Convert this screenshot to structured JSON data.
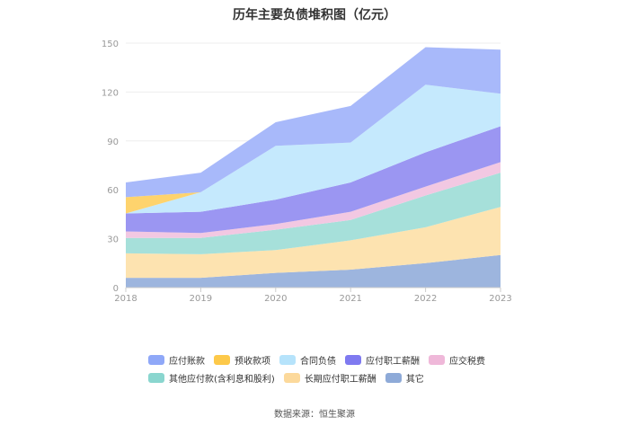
{
  "chart_data": {
    "type": "area",
    "stacked": true,
    "title": "历年主要负债堆积图（亿元）",
    "categories": [
      "2018",
      "2019",
      "2020",
      "2021",
      "2022",
      "2023"
    ],
    "ylim": [
      0,
      150
    ],
    "yticks": [
      0,
      30,
      60,
      90,
      120,
      150
    ],
    "grid": true,
    "legend_position": "bottom",
    "series": [
      {
        "name": "其它",
        "color": "#9db5de",
        "values": [
          6,
          6,
          9,
          11,
          15,
          20
        ]
      },
      {
        "name": "长期应付职工薪酬",
        "color": "#fde3b0",
        "values": [
          15,
          14.5,
          14,
          18,
          22,
          29.5
        ]
      },
      {
        "name": "其他应付款(含利息和股利)",
        "color": "#a6e0da",
        "values": [
          9.5,
          10,
          12.5,
          12.5,
          19.5,
          21
        ]
      },
      {
        "name": "应交税费",
        "color": "#f2c8e2",
        "values": [
          4,
          3,
          3.5,
          5,
          5.5,
          6.5
        ]
      },
      {
        "name": "应付职工薪酬",
        "color": "#9b96f2",
        "values": [
          11,
          13,
          15,
          18,
          21,
          22
        ]
      },
      {
        "name": "合同负债",
        "color": "#c5e9fd",
        "values": [
          0,
          12,
          33,
          24.5,
          41.5,
          20
        ]
      },
      {
        "name": "预收款项",
        "color": "#fed36d",
        "values": [
          10,
          0,
          0,
          0,
          0,
          0
        ]
      },
      {
        "name": "应付账款",
        "color": "#a8b9fa",
        "values": [
          9,
          12,
          14.5,
          22.5,
          23,
          27
        ]
      }
    ],
    "legend_rows": [
      [
        {
          "label": "应付账款",
          "color": "#8fa8f8"
        },
        {
          "label": "预收款项",
          "color": "#fdc94a"
        },
        {
          "label": "合同负债",
          "color": "#b6e3fb"
        },
        {
          "label": "应付职工薪酬",
          "color": "#7f7af0"
        },
        {
          "label": "应交税费",
          "color": "#efb8d9"
        }
      ],
      [
        {
          "label": "其他应付款(含利息和股利)",
          "color": "#8ad6cf"
        },
        {
          "label": "长期应付职工薪酬",
          "color": "#fcd99b"
        },
        {
          "label": "其它",
          "color": "#8eaad8"
        }
      ]
    ]
  },
  "source": "数据来源：恒生聚源"
}
